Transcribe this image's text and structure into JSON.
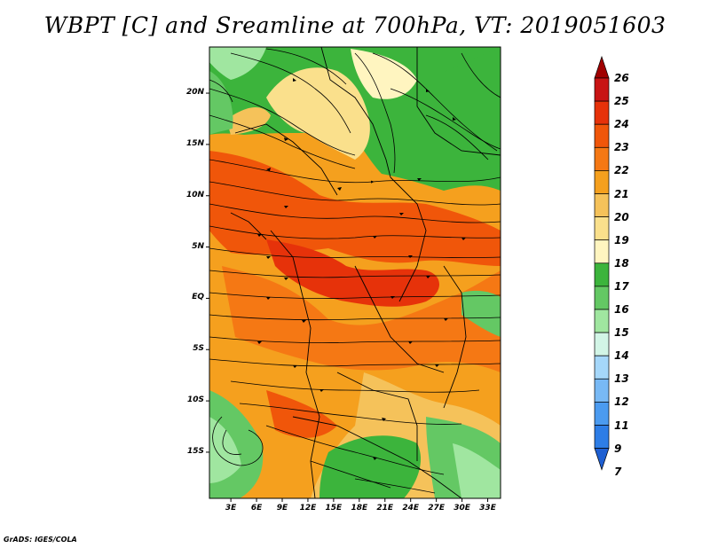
{
  "title": "WBPT [C] and Sreamline at 700hPa, VT: 2019051603",
  "credit": "GrADS: IGES/COLA",
  "map": {
    "lat_labels": [
      "20N",
      "15N",
      "10N",
      "5N",
      "EQ",
      "5S",
      "10S",
      "15S"
    ],
    "lon_labels": [
      "3E",
      "6E",
      "9E",
      "12E",
      "15E",
      "18E",
      "21E",
      "24E",
      "27E",
      "30E",
      "33E"
    ],
    "lat_values": [
      20,
      15,
      10,
      5,
      0,
      -5,
      -10,
      -15
    ],
    "lon_values": [
      3,
      6,
      9,
      12,
      15,
      18,
      21,
      24,
      27,
      30,
      33
    ],
    "lat_range": [
      -19.5,
      24.5
    ],
    "lon_range": [
      0.5,
      34.5
    ],
    "field": "wet bulb potential temperature",
    "units": "C",
    "level": "700hPa"
  },
  "colorbar": {
    "levels": [
      "26",
      "25",
      "24",
      "23",
      "22",
      "21",
      "20",
      "19",
      "18",
      "17",
      "16",
      "15",
      "14",
      "13",
      "12",
      "11",
      "9",
      "7"
    ],
    "colors": [
      "#a00000",
      "#c81414",
      "#e6320a",
      "#f0560a",
      "#f57814",
      "#f5a01e",
      "#f5c25a",
      "#fae08c",
      "#fff5c0",
      "#3cb43c",
      "#64c864",
      "#a0e6a0",
      "#d2f5e6",
      "#a5d7fa",
      "#78b9f5",
      "#4b9bf0",
      "#2d7de6",
      "#1e5fd2"
    ]
  }
}
